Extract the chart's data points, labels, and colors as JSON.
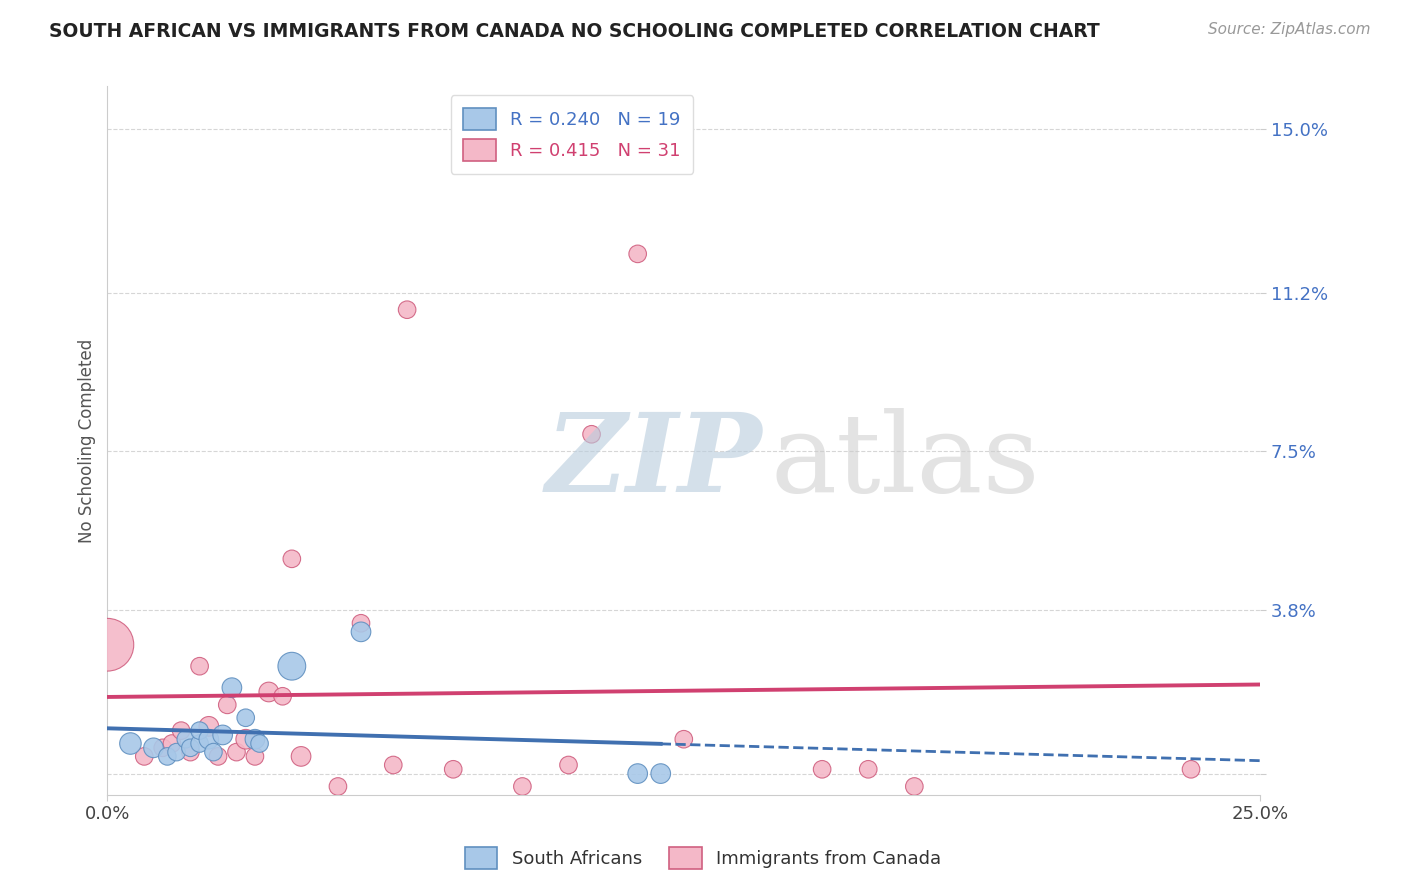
{
  "title": "SOUTH AFRICAN VS IMMIGRANTS FROM CANADA NO SCHOOLING COMPLETED CORRELATION CHART",
  "source": "Source: ZipAtlas.com",
  "ylabel": "No Schooling Completed",
  "xlim": [
    0.0,
    0.25
  ],
  "ylim": [
    -0.005,
    0.16
  ],
  "yticks": [
    0.0,
    0.038,
    0.075,
    0.112,
    0.15
  ],
  "ytick_labels": [
    "",
    "3.8%",
    "7.5%",
    "11.2%",
    "15.0%"
  ],
  "xtick_labels": [
    "0.0%",
    "25.0%"
  ],
  "xticks": [
    0.0,
    0.25
  ],
  "blue_color": "#a8c8e8",
  "pink_color": "#f4b8c8",
  "blue_edge_color": "#6090c0",
  "pink_edge_color": "#d06080",
  "blue_line_color": "#4070b0",
  "pink_line_color": "#d04070",
  "blue_scatter_x": [
    0.005,
    0.01,
    0.013,
    0.015,
    0.017,
    0.018,
    0.02,
    0.02,
    0.022,
    0.023,
    0.025,
    0.027,
    0.03,
    0.032,
    0.033,
    0.04,
    0.055,
    0.115,
    0.12
  ],
  "blue_scatter_y": [
    0.007,
    0.006,
    0.004,
    0.005,
    0.008,
    0.006,
    0.007,
    0.01,
    0.008,
    0.005,
    0.009,
    0.02,
    0.013,
    0.008,
    0.007,
    0.025,
    0.033,
    0.0,
    0.0
  ],
  "blue_scatter_sizes": [
    30,
    25,
    20,
    20,
    20,
    20,
    20,
    20,
    25,
    20,
    25,
    25,
    20,
    25,
    20,
    50,
    25,
    25,
    25
  ],
  "pink_scatter_x": [
    0.0,
    0.008,
    0.012,
    0.014,
    0.016,
    0.018,
    0.02,
    0.022,
    0.024,
    0.026,
    0.028,
    0.03,
    0.032,
    0.035,
    0.038,
    0.04,
    0.042,
    0.05,
    0.055,
    0.062,
    0.065,
    0.075,
    0.09,
    0.1,
    0.105,
    0.115,
    0.125,
    0.155,
    0.165,
    0.175,
    0.235
  ],
  "pink_scatter_y": [
    0.03,
    0.004,
    0.006,
    0.007,
    0.01,
    0.005,
    0.025,
    0.011,
    0.004,
    0.016,
    0.005,
    0.008,
    0.004,
    0.019,
    0.018,
    0.05,
    0.004,
    -0.003,
    0.035,
    0.002,
    0.108,
    0.001,
    -0.003,
    0.002,
    0.079,
    0.121,
    0.008,
    0.001,
    0.001,
    -0.003,
    0.001
  ],
  "pink_scatter_sizes": [
    180,
    20,
    20,
    20,
    20,
    20,
    20,
    25,
    20,
    20,
    20,
    25,
    20,
    25,
    20,
    20,
    25,
    20,
    20,
    20,
    20,
    20,
    20,
    20,
    20,
    20,
    20,
    20,
    20,
    20,
    20
  ],
  "legend1_text": "R = 0.240   N = 19",
  "legend2_text": "R = 0.415   N = 31",
  "legend1_color": "#4472c4",
  "legend2_color": "#d04070",
  "bottom_legend1": "South Africans",
  "bottom_legend2": "Immigrants from Canada"
}
